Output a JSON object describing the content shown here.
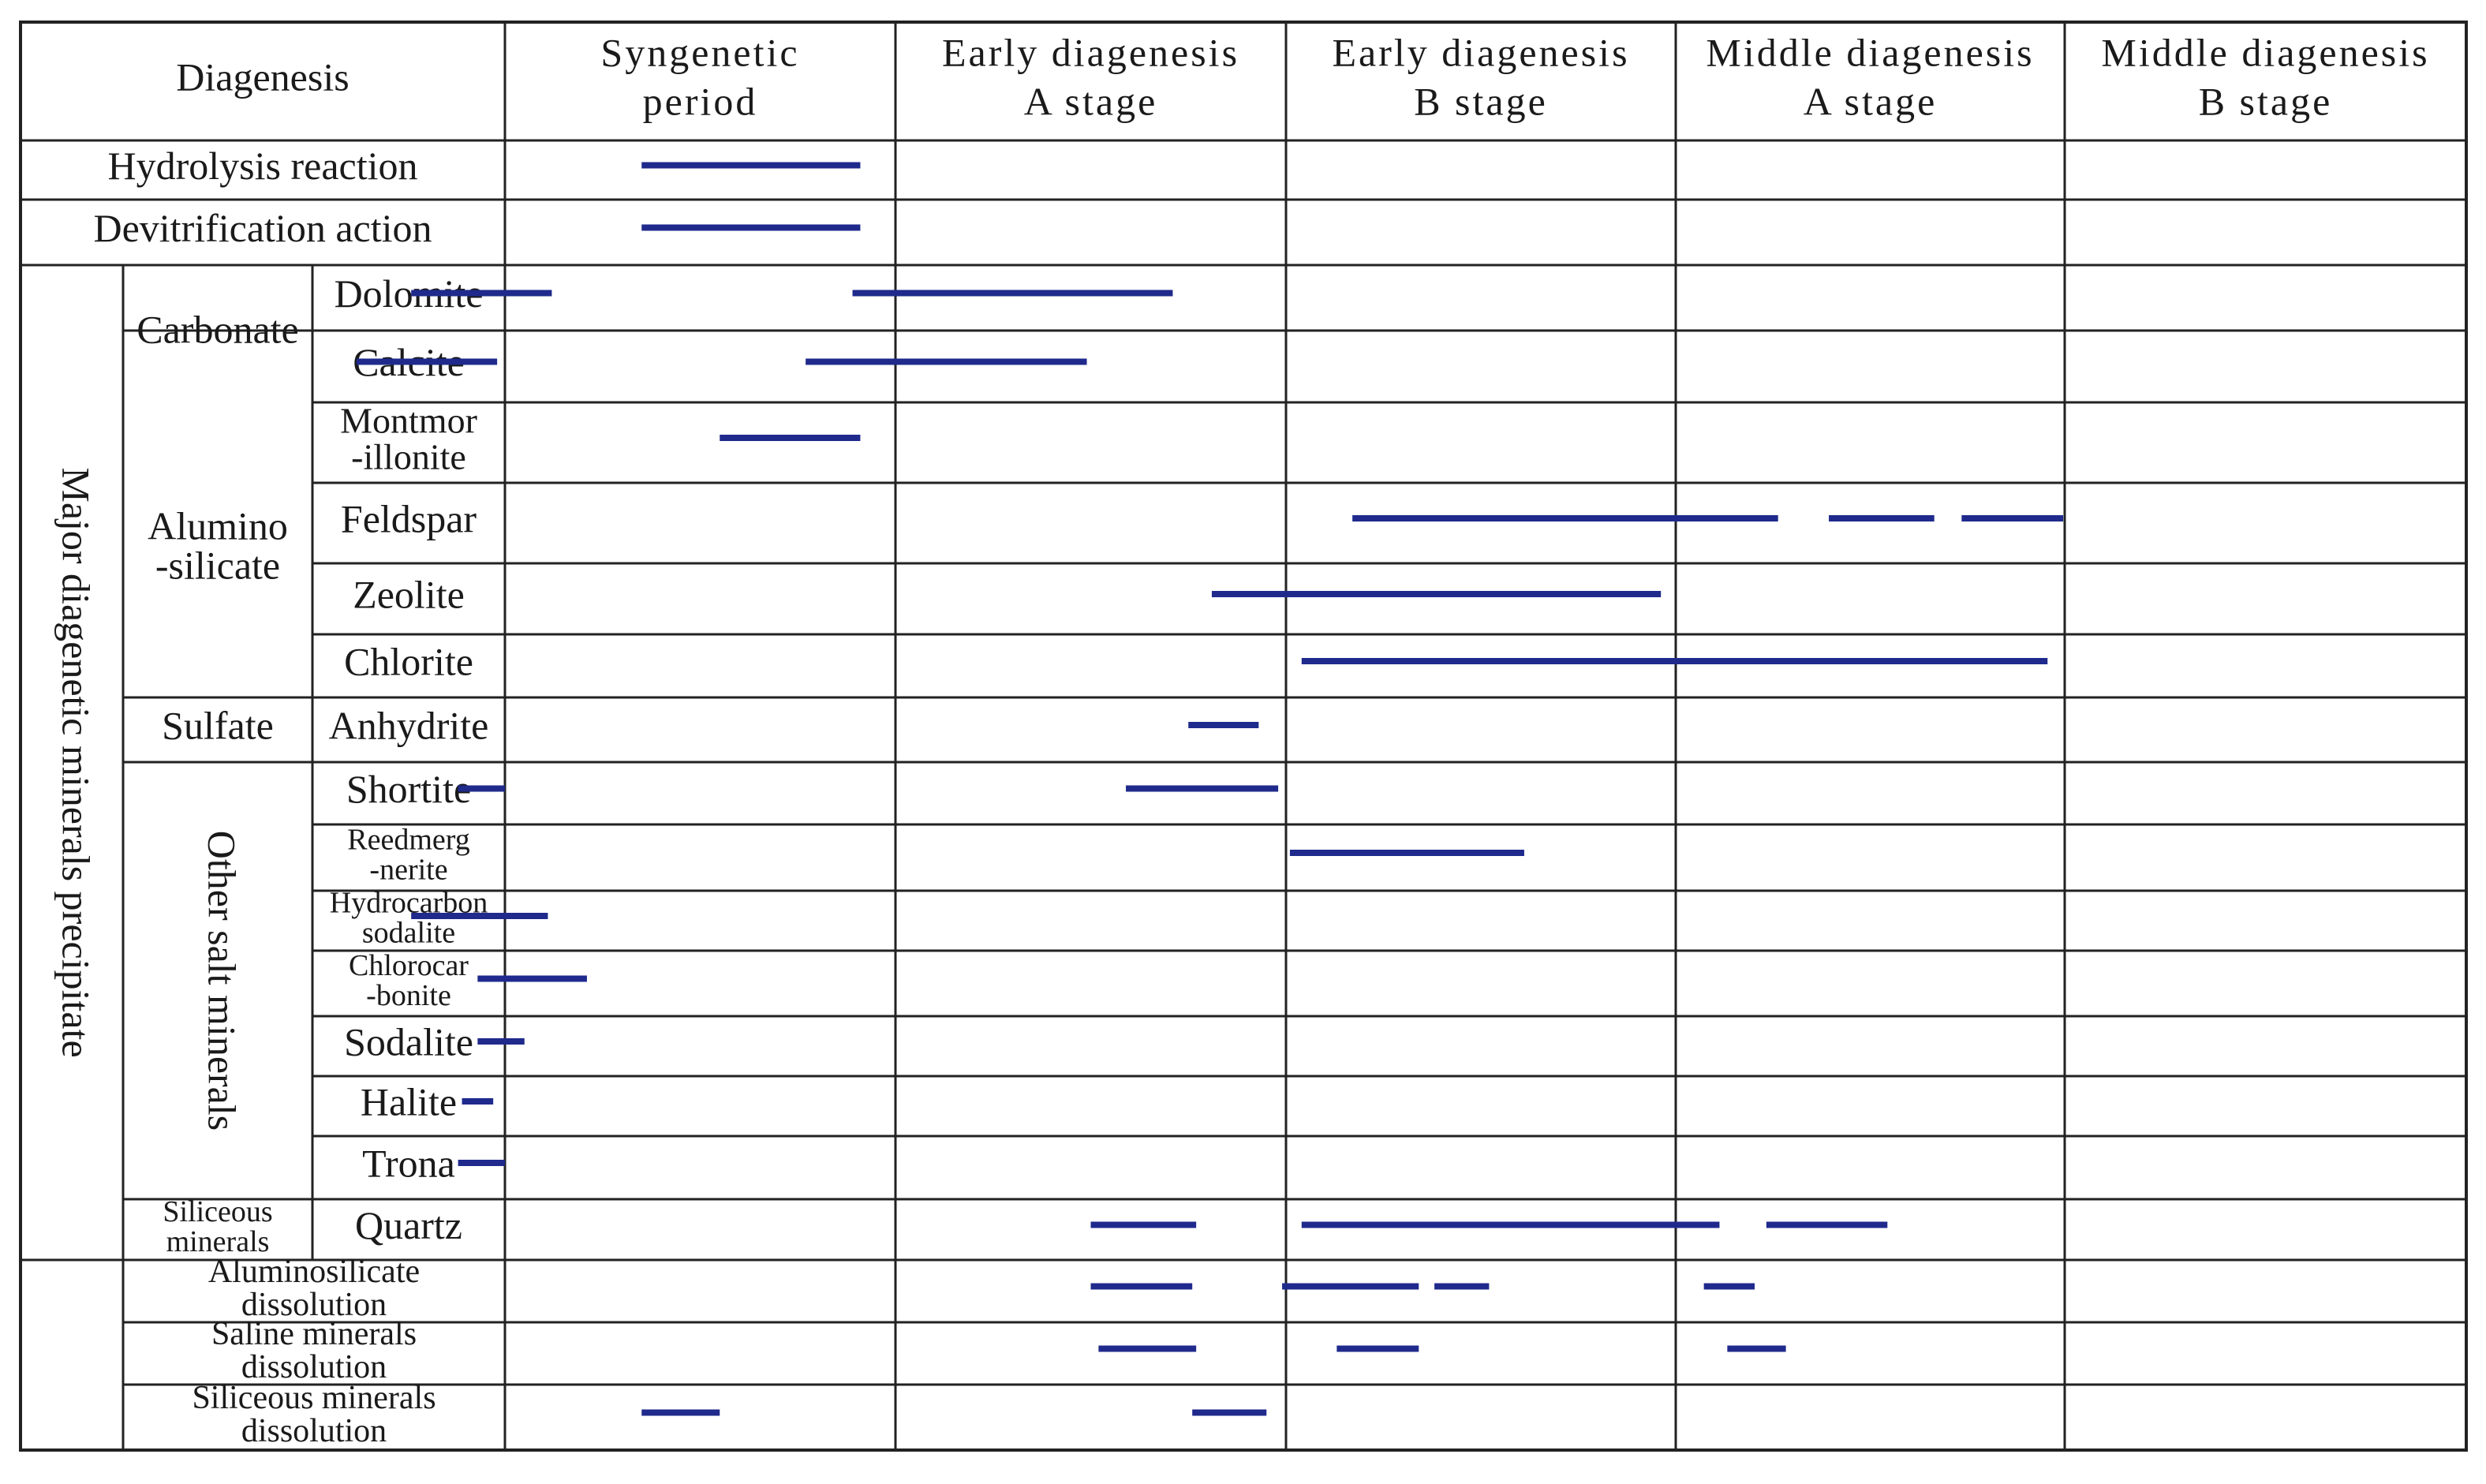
{
  "header": {
    "diagenesis": "Diagenesis",
    "stages": [
      [
        "Syngenetic",
        "period"
      ],
      [
        "Early diagenesis",
        "A  stage"
      ],
      [
        "Early diagenesis",
        "B  stage"
      ],
      [
        "Middle diagenesis",
        "A  stage"
      ],
      [
        "Middle diagenesis",
        "B  stage"
      ]
    ]
  },
  "groups": {
    "major": "Major diagenetic minerals precipitate",
    "carbonate": "Carbonate",
    "aluminosilicate": [
      "Alumino",
      "-silicate"
    ],
    "sulfate": "Sulfate",
    "other_salt": "Other salt minerals",
    "siliceous": [
      "Siliceous",
      "minerals"
    ]
  },
  "rows": [
    {
      "label": [
        "Hydrolysis reaction"
      ],
      "bars": [
        [
          0.35,
          0.91
        ]
      ]
    },
    {
      "label": [
        "Devitrification action"
      ],
      "bars": [
        [
          0.35,
          0.91
        ]
      ]
    },
    {
      "label": [
        "Dolomite"
      ],
      "bars": [
        [
          -0.24,
          0.12
        ],
        [
          0.89,
          1.71
        ]
      ]
    },
    {
      "label": [
        "Calcite"
      ],
      "bars": [
        [
          -0.38,
          -0.02
        ],
        [
          0.77,
          1.49
        ]
      ]
    },
    {
      "label": [
        "Montmor",
        "-illonite"
      ],
      "bars": [
        [
          0.55,
          0.91
        ]
      ]
    },
    {
      "label": [
        "Feldspar"
      ],
      "bars": [
        [
          2.17,
          3.26
        ],
        [
          3.39,
          3.66
        ],
        [
          3.73,
          3.99
        ]
      ]
    },
    {
      "label": [
        "Zeolite"
      ],
      "bars": [
        [
          1.81,
          2.96
        ]
      ]
    },
    {
      "label": [
        "Chlorite"
      ],
      "bars": [
        [
          2.04,
          3.95
        ]
      ]
    },
    {
      "label": [
        "Anhydrite"
      ],
      "bars": [
        [
          1.75,
          1.93
        ]
      ]
    },
    {
      "label": [
        "Shortite"
      ],
      "bars": [
        [
          -0.12,
          0.0
        ],
        [
          1.59,
          1.98
        ]
      ]
    },
    {
      "label": [
        "Reedmerg",
        "-nerite"
      ],
      "bars": [
        [
          2.01,
          2.61
        ]
      ]
    },
    {
      "label": [
        "Hydrocarbon",
        "sodalite"
      ],
      "bars": [
        [
          -0.24,
          0.11
        ]
      ]
    },
    {
      "label": [
        "Chlorocar",
        "-bonite"
      ],
      "bars": [
        [
          -0.07,
          0.21
        ]
      ]
    },
    {
      "label": [
        "Sodalite"
      ],
      "bars": [
        [
          -0.07,
          0.05
        ]
      ]
    },
    {
      "label": [
        "Halite"
      ],
      "bars": [
        [
          -0.11,
          -0.03
        ]
      ]
    },
    {
      "label": [
        "Trona"
      ],
      "bars": [
        [
          -0.12,
          0.0
        ]
      ]
    },
    {
      "label": [
        "Quartz"
      ],
      "bars": [
        [
          1.5,
          1.77
        ],
        [
          2.04,
          3.11
        ],
        [
          3.23,
          3.54
        ]
      ]
    },
    {
      "label": [
        "Aluminosilicate",
        "dissolution"
      ],
      "bars": [
        [
          1.5,
          1.76
        ],
        [
          1.99,
          2.34
        ],
        [
          2.38,
          2.52
        ],
        [
          3.07,
          3.2
        ]
      ]
    },
    {
      "label": [
        "Saline minerals",
        "dissolution"
      ],
      "bars": [
        [
          1.52,
          1.77
        ],
        [
          2.13,
          2.34
        ],
        [
          3.13,
          3.28
        ]
      ]
    },
    {
      "label": [
        "Siliceous minerals",
        "dissolution"
      ],
      "bars": [
        [
          0.35,
          0.55
        ],
        [
          1.76,
          1.95
        ]
      ]
    }
  ],
  "colors": {
    "bar": "#1f2a8c",
    "grid": "#222222"
  }
}
